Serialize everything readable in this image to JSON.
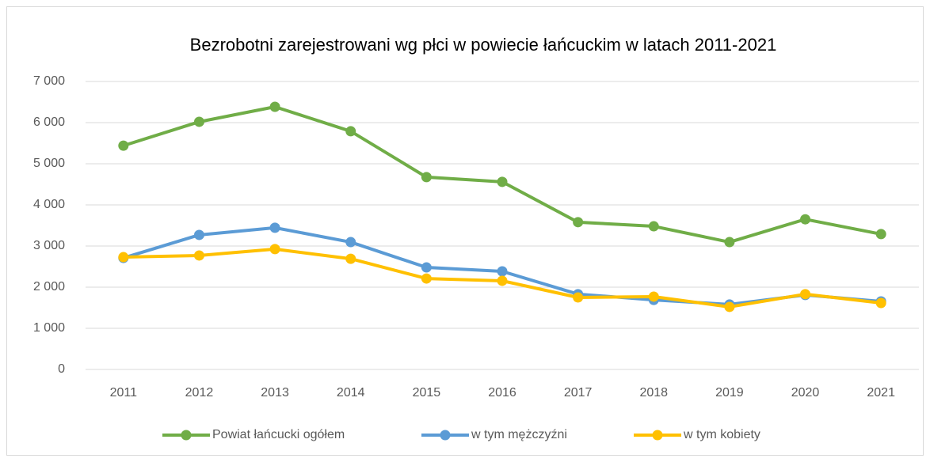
{
  "chart_data": {
    "type": "line",
    "title": "Bezrobotni zarejestrowani wg płci w powiecie łańcuckim w latach 2011-2021",
    "categories": [
      "2011",
      "2012",
      "2013",
      "2014",
      "2015",
      "2016",
      "2017",
      "2018",
      "2019",
      "2020",
      "2021"
    ],
    "series": [
      {
        "name": "Powiat łańcucki ogółem",
        "color": "#70ad47",
        "values": [
          5440,
          6020,
          6385,
          5790,
          4675,
          4560,
          3580,
          3480,
          3095,
          3650,
          3290
        ]
      },
      {
        "name": "w tym mężczyźni",
        "color": "#5b9bd5",
        "values": [
          2710,
          3270,
          3445,
          3095,
          2480,
          2385,
          1830,
          1690,
          1580,
          1810,
          1655
        ]
      },
      {
        "name": "w tym kobiety",
        "color": "#ffc000",
        "values": [
          2730,
          2770,
          2925,
          2690,
          2210,
          2155,
          1750,
          1770,
          1520,
          1830,
          1615
        ]
      }
    ],
    "ylim": [
      0,
      7000
    ],
    "yticks": [
      0,
      {
        "value": 1000,
        "label": "1 000"
      },
      {
        "value": 2000,
        "label": "2 000"
      },
      {
        "value": 3000,
        "label": "3 000"
      },
      {
        "value": 4000,
        "label": "4 000"
      },
      {
        "value": 5000,
        "label": "5 000"
      },
      {
        "value": 6000,
        "label": "6 000"
      },
      {
        "value": 7000,
        "label": "7 000"
      }
    ],
    "grid": true,
    "legend": "bottom"
  }
}
